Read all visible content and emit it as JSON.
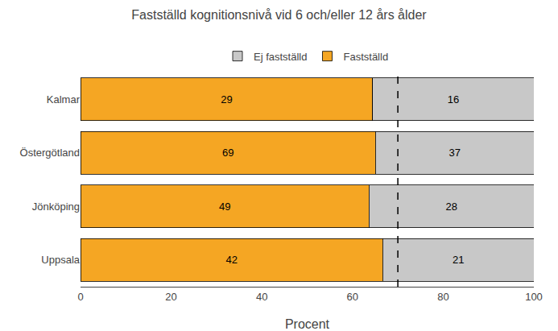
{
  "chart_data": {
    "type": "bar",
    "orientation": "horizontal",
    "stacked": true,
    "title": "Fastställd kognitionsnivå vid 6 och/eller 12 års ålder",
    "categories": [
      "Kalmar",
      "Östergötland",
      "Jönköping",
      "Uppsala"
    ],
    "series": [
      {
        "name": "Fastställd",
        "color": "#F5A623",
        "values": [
          64.44,
          65.09,
          63.64,
          66.67
        ],
        "counts": [
          29,
          69,
          49,
          42
        ]
      },
      {
        "name": "Ej fastställd",
        "color": "#C8C8C8",
        "values": [
          35.56,
          34.91,
          36.36,
          33.33
        ],
        "counts": [
          16,
          37,
          28,
          21
        ]
      }
    ],
    "xlabel": "Procent",
    "xlim": [
      0,
      100
    ],
    "xticks": [
      0,
      20,
      40,
      60,
      80,
      100
    ],
    "reference_lines": [
      {
        "x": 70,
        "line_style": "dashed",
        "color": "black"
      }
    ],
    "legend": "top",
    "grid": false
  }
}
